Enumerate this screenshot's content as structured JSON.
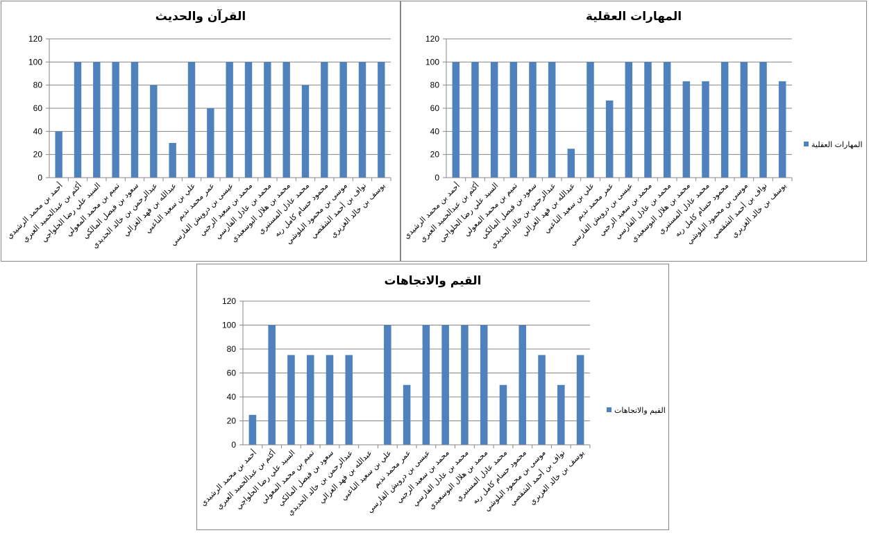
{
  "chart_data": [
    {
      "type": "bar",
      "title": "القرآن والحديث",
      "ylim": [
        0,
        120
      ],
      "yticks": [
        0,
        20,
        40,
        60,
        80,
        100,
        120
      ],
      "grid": true,
      "legend": null,
      "color": "#4F81BD",
      "categories": [
        "أحمد بن محمد الرشيدي",
        "أكثم بن عبدالحميد العبري",
        "السيد علي رضا الحلواجي",
        "تميم بن محمد المعولي",
        "سعود بن فيصل المالكي",
        "عبدالرحمن بن خالد الحديدي",
        "عبدالله بن فهد الغزالي",
        "علي بن سعيد الناعبي",
        "عمر محمد نديم",
        "عيسى بن درويش الفارسي",
        "محمد بن سعيد الرجبي",
        "محمد بن عادل الفارسي",
        "محمد بن هلال البوسعيدي",
        "محمد عادل المستيري",
        "محمود حسام كامل ربه",
        "موسى بن محمود البلوشي",
        "نواف بن أحمد الشقصي",
        "يوسف بن خالد الغزيري"
      ],
      "values": [
        40,
        100,
        100,
        100,
        100,
        80,
        30,
        100,
        60,
        100,
        100,
        100,
        100,
        80,
        100,
        100,
        100,
        100
      ]
    },
    {
      "type": "bar",
      "title": "المهارات العقلية",
      "ylim": [
        0,
        120
      ],
      "yticks": [
        0,
        20,
        40,
        60,
        80,
        100,
        120
      ],
      "grid": true,
      "legend": "المهارات العقلية",
      "legend_position": "right",
      "color": "#4F81BD",
      "categories": [
        "أحمد بن محمد الرشيدي",
        "أكثم بن عبدالحميد العبري",
        "السيد علي رضا الحلواجي",
        "تميم بن محمد المعولي",
        "سعود بن فيصل المالكي",
        "عبدالرحمن بن خالد الحديدي",
        "عبدالله بن فهد الغزالي",
        "علي بن سعيد الناعبي",
        "عمر محمد نديم",
        "عيسى بن درويش الفارسي",
        "محمد بن سعيد الرجبي",
        "محمد بن عادل الفارسي",
        "محمد بن هلال البوسعيدي",
        "محمد عادل المستيري",
        "محمود حسام كامل ربه",
        "موسى بن محمود البلوشي",
        "نواف بن أحمد الشقصي",
        "يوسف بن خالد الغزيري"
      ],
      "values": [
        100,
        100,
        100,
        100,
        100,
        100,
        25,
        100,
        66.7,
        100,
        100,
        100,
        83.3,
        83.3,
        100,
        100,
        100,
        83.3
      ]
    },
    {
      "type": "bar",
      "title": "القيم والاتجاهات",
      "ylim": [
        0,
        120
      ],
      "yticks": [
        0,
        20,
        40,
        60,
        80,
        100,
        120
      ],
      "grid": true,
      "legend": "القيم والاتجاهات",
      "legend_position": "right",
      "color": "#4F81BD",
      "categories": [
        "أحمد بن محمد الرشيدي",
        "أكثم بن عبدالحميد العبري",
        "السيد علي رضا الحلواجي",
        "تميم بن محمد المعولي",
        "سعود بن فيصل المالكي",
        "عبدالرحمن بن خالد الحديدي",
        "عبدالله بن فهد الغزالي",
        "علي بن سعيد الناعبي",
        "عمر محمد نديم",
        "عيسى بن درويش الفارسي",
        "محمد بن سعيد الرجبي",
        "محمد بن عادل الفارسي",
        "محمد بن هلال البوسعيدي",
        "محمد عادل المستيري",
        "محمود حسام كامل ربه",
        "موسى بن محمود البلوشي",
        "نواف بن أحمد الشقصي",
        "يوسف بن خالد الغزيري"
      ],
      "values": [
        25,
        100,
        75,
        75,
        75,
        75,
        0,
        100,
        50,
        100,
        100,
        100,
        100,
        50,
        100,
        75,
        50,
        75
      ]
    }
  ]
}
